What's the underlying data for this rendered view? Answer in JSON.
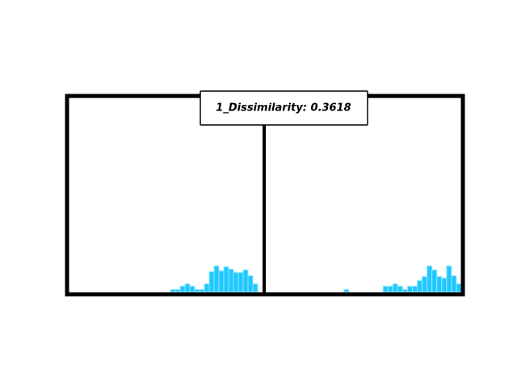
{
  "annotation": "1_Dissimilarity: 0.3618",
  "chart_data": [
    {
      "type": "histogram",
      "color": "#1ec8ff",
      "bins": [
        21,
        22,
        23,
        24,
        25,
        26,
        27,
        28,
        29,
        30,
        31,
        32,
        33,
        34,
        35,
        36,
        37,
        38,
        39
      ],
      "counts": [
        3,
        3,
        7,
        10,
        7,
        3,
        3,
        10,
        25,
        32,
        26,
        31,
        28,
        24,
        24,
        27,
        20,
        10
      ],
      "xlim": [
        0,
        40
      ],
      "ylim": [
        0,
        240
      ]
    },
    {
      "type": "histogram",
      "color": "#1ec8ff",
      "bins": [
        16,
        17,
        18,
        19,
        20,
        21,
        22,
        23,
        24,
        25,
        26,
        27,
        28,
        29,
        30,
        31,
        32,
        33,
        34,
        35,
        36,
        37,
        38,
        39,
        40
      ],
      "counts": [
        3,
        0,
        0,
        0,
        0,
        0,
        0,
        0,
        7,
        7,
        10,
        7,
        3,
        7,
        7,
        14,
        19,
        32,
        27,
        19,
        17,
        32,
        20,
        10
      ],
      "xlim": [
        0,
        40
      ],
      "ylim": [
        0,
        240
      ]
    }
  ]
}
